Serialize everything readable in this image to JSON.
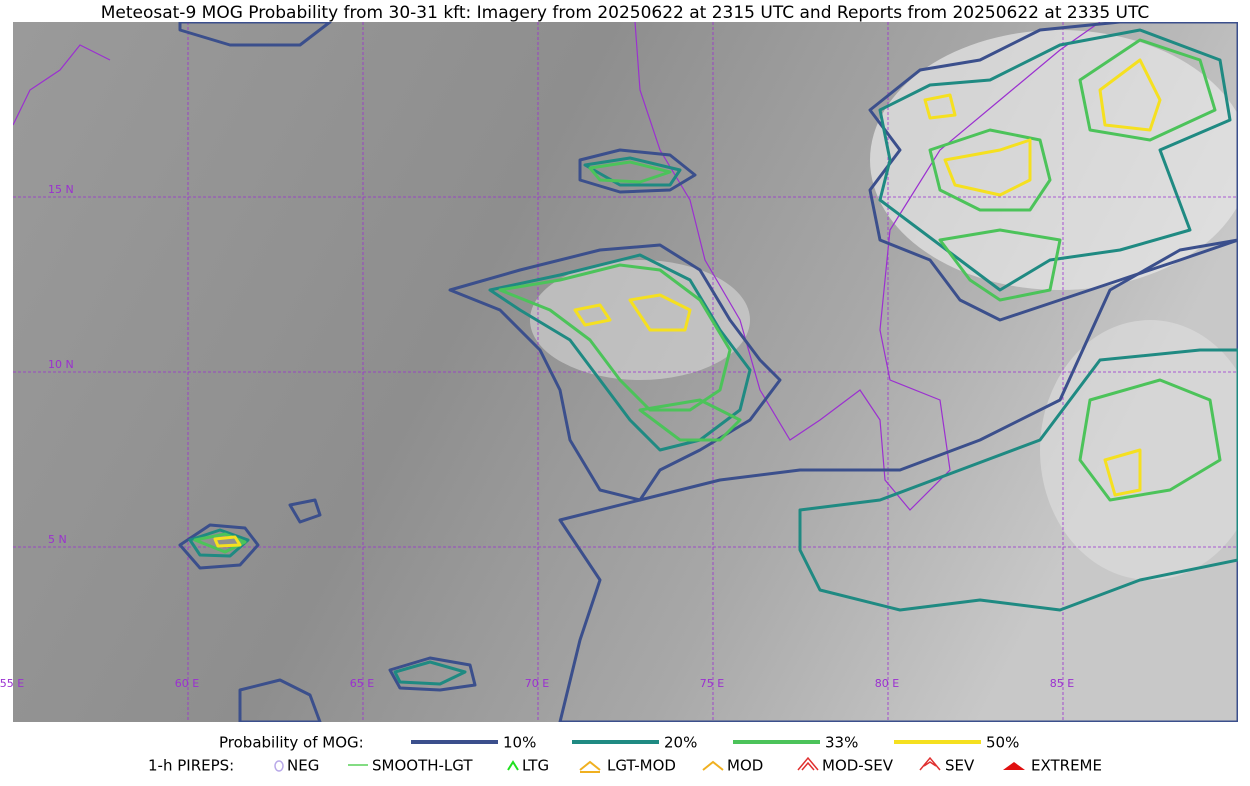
{
  "title": "Meteosat-9 MOG Probability from 30-31 kft: Imagery from 20250622 at 2315 UTC and Reports from 20250622 at 2335 UTC",
  "grid_labels": {
    "lat": [
      "15 N",
      "10 N",
      "5 N"
    ],
    "lon": [
      "55 E",
      "60 E",
      "65 E",
      "70 E",
      "75 E",
      "80 E",
      "85 E"
    ]
  },
  "legend": {
    "probability_label": "Probability of MOG:",
    "levels": [
      {
        "label": "10%",
        "color": "#3b4f8c"
      },
      {
        "label": "20%",
        "color": "#1f8a82"
      },
      {
        "label": "33%",
        "color": "#4cc35a"
      },
      {
        "label": "50%",
        "color": "#f5e020"
      }
    ],
    "pireps_label": "1-h PIREPS:",
    "pireps": [
      "NEG",
      "SMOOTH-LGT",
      "LTG",
      "LGT-MOD",
      "MOD",
      "MOD-SEV",
      "SEV",
      "EXTREME"
    ]
  }
}
